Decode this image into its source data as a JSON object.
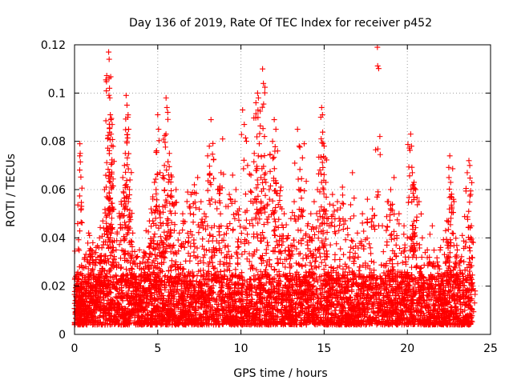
{
  "chart_data": {
    "type": "scatter",
    "title": "Day 136 of 2019, Rate Of TEC Index for receiver p452",
    "xlabel": "GPS time / hours",
    "ylabel": "ROTI / TECUs",
    "xlim": [
      0,
      25
    ],
    "ylim": [
      0,
      0.12
    ],
    "xticks": [
      0,
      5,
      10,
      15,
      20,
      25
    ],
    "yticks": [
      0,
      0.02,
      0.04,
      0.06,
      0.08,
      0.1,
      0.12
    ],
    "xtick_labels": [
      "0",
      "5",
      "10",
      "15",
      "20",
      "25"
    ],
    "ytick_labels": [
      "0",
      "0.02",
      "0.04",
      "0.06",
      "0.08",
      "0.1",
      "0.12"
    ],
    "grid": true,
    "marker": "+",
    "color": "#ff0000",
    "series": [
      {
        "name": "p452",
        "points": [
          [
            0.05,
            0.014
          ],
          [
            0.15,
            0.022
          ],
          [
            0.25,
            0.018
          ],
          [
            0.3,
            0.028
          ],
          [
            0.32,
            0.079
          ],
          [
            0.34,
            0.075
          ],
          [
            0.4,
            0.012
          ],
          [
            0.5,
            0.016
          ],
          [
            0.7,
            0.02
          ],
          [
            0.85,
            0.042
          ],
          [
            0.9,
            0.041
          ],
          [
            1.0,
            0.035
          ],
          [
            1.1,
            0.038
          ],
          [
            1.2,
            0.03
          ],
          [
            1.3,
            0.036
          ],
          [
            1.4,
            0.032
          ],
          [
            1.5,
            0.04
          ],
          [
            1.6,
            0.025
          ],
          [
            1.7,
            0.047
          ],
          [
            1.8,
            0.06
          ],
          [
            1.9,
            0.061
          ],
          [
            2.0,
            0.044
          ],
          [
            2.05,
            0.117
          ],
          [
            2.08,
            0.114
          ],
          [
            2.1,
            0.102
          ],
          [
            2.12,
            0.098
          ],
          [
            2.15,
            0.091
          ],
          [
            2.18,
            0.089
          ],
          [
            2.2,
            0.083
          ],
          [
            2.25,
            0.071
          ],
          [
            2.3,
            0.052
          ],
          [
            2.5,
            0.035
          ],
          [
            2.7,
            0.049
          ],
          [
            2.8,
            0.055
          ],
          [
            2.9,
            0.065
          ],
          [
            3.0,
            0.07
          ],
          [
            3.05,
            0.075
          ],
          [
            3.1,
            0.099
          ],
          [
            3.15,
            0.095
          ],
          [
            3.2,
            0.09
          ],
          [
            3.25,
            0.085
          ],
          [
            3.3,
            0.06
          ],
          [
            3.5,
            0.042
          ],
          [
            3.7,
            0.032
          ],
          [
            3.9,
            0.035
          ],
          [
            4.1,
            0.03
          ],
          [
            4.3,
            0.043
          ],
          [
            4.5,
            0.047
          ],
          [
            4.6,
            0.052
          ],
          [
            4.7,
            0.057
          ],
          [
            4.8,
            0.063
          ],
          [
            4.9,
            0.06
          ],
          [
            5.0,
            0.091
          ],
          [
            5.05,
            0.085
          ],
          [
            5.1,
            0.05
          ],
          [
            5.2,
            0.045
          ],
          [
            5.3,
            0.065
          ],
          [
            5.4,
            0.07
          ],
          [
            5.5,
            0.098
          ],
          [
            5.55,
            0.094
          ],
          [
            5.6,
            0.092
          ],
          [
            5.7,
            0.075
          ],
          [
            5.8,
            0.066
          ],
          [
            5.9,
            0.054
          ],
          [
            6.1,
            0.06
          ],
          [
            6.3,
            0.042
          ],
          [
            6.5,
            0.05
          ],
          [
            6.8,
            0.059
          ],
          [
            7.0,
            0.058
          ],
          [
            7.2,
            0.062
          ],
          [
            7.4,
            0.065
          ],
          [
            7.6,
            0.055
          ],
          [
            7.8,
            0.05
          ],
          [
            8.0,
            0.074
          ],
          [
            8.1,
            0.078
          ],
          [
            8.2,
            0.089
          ],
          [
            8.4,
            0.045
          ],
          [
            8.6,
            0.06
          ],
          [
            8.8,
            0.067
          ],
          [
            8.9,
            0.081
          ],
          [
            9.1,
            0.053
          ],
          [
            9.3,
            0.058
          ],
          [
            9.5,
            0.066
          ],
          [
            9.7,
            0.06
          ],
          [
            9.9,
            0.052
          ],
          [
            10.1,
            0.093
          ],
          [
            10.2,
            0.087
          ],
          [
            10.4,
            0.07
          ],
          [
            10.6,
            0.066
          ],
          [
            10.8,
            0.075
          ],
          [
            10.9,
            0.096
          ],
          [
            11.0,
            0.1
          ],
          [
            11.05,
            0.098
          ],
          [
            11.1,
            0.079
          ],
          [
            11.2,
            0.065
          ],
          [
            11.3,
            0.11
          ],
          [
            11.35,
            0.104
          ],
          [
            11.5,
            0.063
          ],
          [
            11.7,
            0.06
          ],
          [
            11.9,
            0.08
          ],
          [
            12.0,
            0.089
          ],
          [
            12.1,
            0.085
          ],
          [
            12.2,
            0.076
          ],
          [
            12.4,
            0.061
          ],
          [
            12.6,
            0.05
          ],
          [
            12.8,
            0.04
          ],
          [
            13.0,
            0.048
          ],
          [
            13.2,
            0.055
          ],
          [
            13.4,
            0.085
          ],
          [
            13.5,
            0.078
          ],
          [
            13.6,
            0.06
          ],
          [
            13.8,
            0.079
          ],
          [
            14.0,
            0.045
          ],
          [
            14.2,
            0.05
          ],
          [
            14.4,
            0.055
          ],
          [
            14.6,
            0.06
          ],
          [
            14.8,
            0.09
          ],
          [
            14.85,
            0.094
          ],
          [
            14.9,
            0.091
          ],
          [
            15.0,
            0.078
          ],
          [
            15.1,
            0.063
          ],
          [
            15.3,
            0.045
          ],
          [
            15.5,
            0.058
          ],
          [
            15.8,
            0.055
          ],
          [
            16.1,
            0.061
          ],
          [
            16.4,
            0.044
          ],
          [
            16.7,
            0.067
          ],
          [
            17.0,
            0.042
          ],
          [
            17.3,
            0.05
          ],
          [
            17.6,
            0.056
          ],
          [
            17.9,
            0.052
          ],
          [
            18.2,
            0.119
          ],
          [
            18.5,
            0.045
          ],
          [
            18.8,
            0.055
          ],
          [
            19.0,
            0.06
          ],
          [
            19.2,
            0.065
          ],
          [
            19.5,
            0.05
          ],
          [
            19.8,
            0.045
          ],
          [
            20.0,
            0.04
          ],
          [
            20.2,
            0.083
          ],
          [
            20.25,
            0.078
          ],
          [
            20.3,
            0.067
          ],
          [
            20.4,
            0.063
          ],
          [
            20.5,
            0.06
          ],
          [
            20.7,
            0.055
          ],
          [
            20.9,
            0.04
          ],
          [
            21.2,
            0.035
          ],
          [
            21.5,
            0.045
          ],
          [
            21.8,
            0.03
          ],
          [
            22.0,
            0.036
          ],
          [
            22.3,
            0.043
          ],
          [
            22.5,
            0.065
          ],
          [
            22.55,
            0.074
          ],
          [
            22.6,
            0.063
          ],
          [
            22.8,
            0.055
          ],
          [
            23.0,
            0.035
          ],
          [
            23.3,
            0.041
          ],
          [
            23.6,
            0.067
          ],
          [
            23.7,
            0.072
          ],
          [
            23.75,
            0.07
          ],
          [
            23.8,
            0.058
          ],
          [
            23.85,
            0.045
          ],
          [
            23.9,
            0.02
          ]
        ]
      }
    ],
    "dense_band": {
      "description": "continuous background noise band of points",
      "x_range": [
        0,
        23.9
      ],
      "y_base_range": [
        0.004,
        0.025
      ]
    }
  }
}
